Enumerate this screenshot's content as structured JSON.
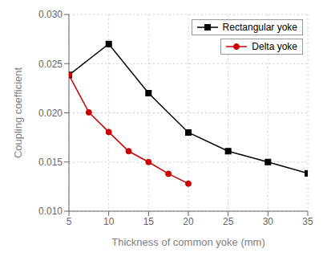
{
  "chart_data": {
    "type": "line",
    "xlabel": "Thickness of common yoke (mm)",
    "ylabel": "Coupling coefficient",
    "series": [
      {
        "name": "Rectangular yoke",
        "color": "#000000",
        "marker": "square",
        "line_style": "solid",
        "x": [
          5,
          10,
          15,
          20,
          25,
          30,
          35
        ],
        "values": [
          0.02385,
          0.027,
          0.022,
          0.018,
          0.0161,
          0.015,
          0.01385
        ]
      },
      {
        "name": "Delta yoke",
        "color": "#cc0000",
        "marker": "circle",
        "line_style": "solid",
        "x": [
          5,
          7.5,
          10,
          12.5,
          15,
          17.5,
          20
        ],
        "values": [
          0.02385,
          0.02005,
          0.01805,
          0.0161,
          0.015,
          0.0138,
          0.0128
        ]
      }
    ],
    "xlim": [
      5,
      35
    ],
    "ylim": [
      0.01,
      0.03
    ],
    "xticks": [
      5,
      10,
      15,
      20,
      25,
      30,
      35
    ],
    "yticks": [
      {
        "value": 0.01,
        "label": "0.010"
      },
      0.015,
      {
        "value": 0.02,
        "label": "0.020"
      },
      0.025,
      {
        "value": 0.03,
        "label": "0.030"
      }
    ],
    "grid": true,
    "legend": "upper right"
  }
}
